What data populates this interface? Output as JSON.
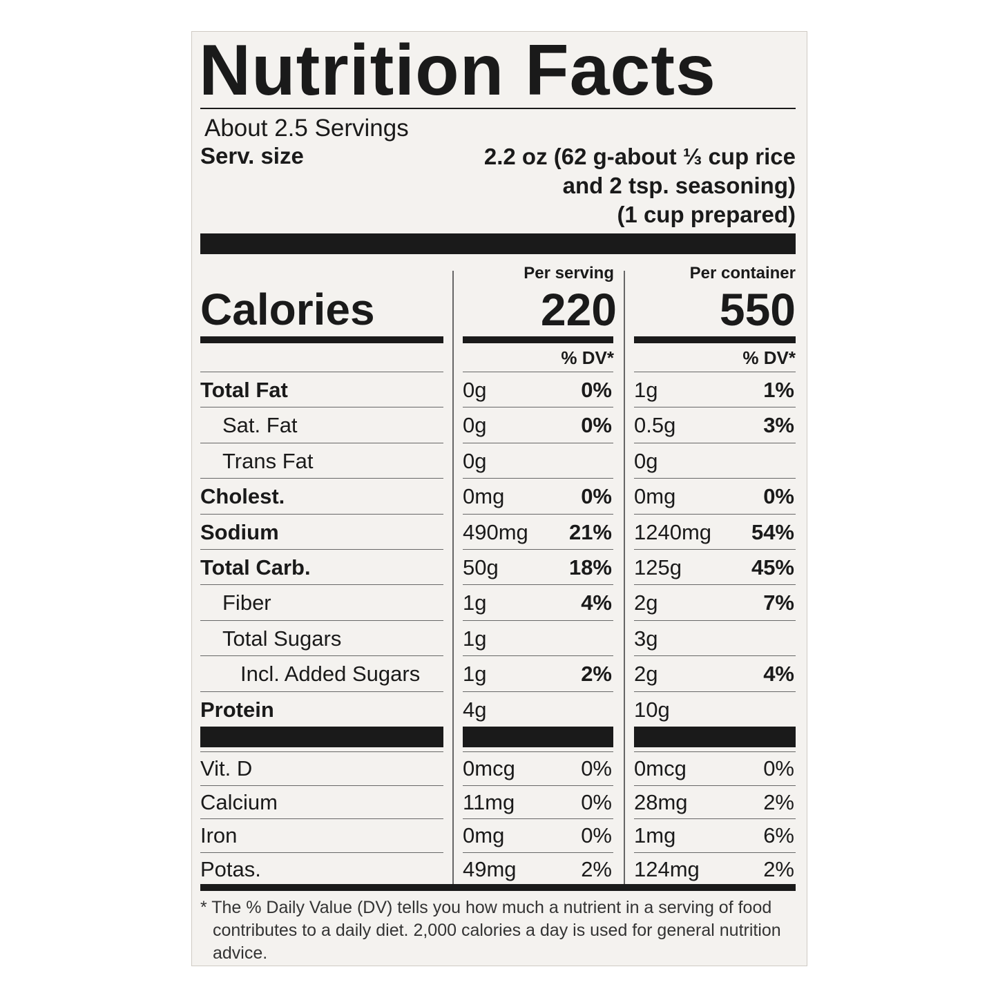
{
  "title": "Nutrition Facts",
  "servings": "About 2.5 Servings",
  "serving_size": {
    "label": "Serv. size",
    "lines": [
      "2.2 oz (62 g-about ⅓ cup rice",
      "and 2 tsp. seasoning)",
      "(1 cup prepared)"
    ]
  },
  "columns": [
    "Per serving",
    "Per container"
  ],
  "calories": {
    "label": "Calories",
    "per_serving": "220",
    "per_container": "550"
  },
  "dv_header": "% DV*",
  "nutrients": [
    {
      "label": "Total Fat",
      "per_serving": {
        "amount": "0g",
        "dv": "0%"
      },
      "per_container": {
        "amount": "1g",
        "dv": "1%"
      }
    },
    {
      "label": "Sat. Fat",
      "per_serving": {
        "amount": "0g",
        "dv": "0%"
      },
      "per_container": {
        "amount": "0.5g",
        "dv": "3%"
      }
    },
    {
      "label": "Trans Fat",
      "per_serving": {
        "amount": "0g",
        "dv": null
      },
      "per_container": {
        "amount": "0g",
        "dv": null
      }
    },
    {
      "label": "Cholest.",
      "per_serving": {
        "amount": "0mg",
        "dv": "0%"
      },
      "per_container": {
        "amount": "0mg",
        "dv": "0%"
      }
    },
    {
      "label": "Sodium",
      "per_serving": {
        "amount": "490mg",
        "dv": "21%"
      },
      "per_container": {
        "amount": "1240mg",
        "dv": "54%"
      }
    },
    {
      "label": "Total Carb.",
      "per_serving": {
        "amount": "50g",
        "dv": "18%"
      },
      "per_container": {
        "amount": "125g",
        "dv": "45%"
      }
    },
    {
      "label": "Fiber",
      "per_serving": {
        "amount": "1g",
        "dv": "4%"
      },
      "per_container": {
        "amount": "2g",
        "dv": "7%"
      }
    },
    {
      "label": "Total Sugars",
      "per_serving": {
        "amount": "1g",
        "dv": null
      },
      "per_container": {
        "amount": "3g",
        "dv": null
      }
    },
    {
      "label": "Incl. Added Sugars",
      "per_serving": {
        "amount": "1g",
        "dv": "2%"
      },
      "per_container": {
        "amount": "2g",
        "dv": "4%"
      }
    },
    {
      "label": "Protein",
      "per_serving": {
        "amount": "4g",
        "dv": null
      },
      "per_container": {
        "amount": "10g",
        "dv": null
      }
    }
  ],
  "vitamins": [
    {
      "label": "Vit. D",
      "per_serving": {
        "amount": "0mcg",
        "dv": "0%"
      },
      "per_container": {
        "amount": "0mcg",
        "dv": "0%"
      }
    },
    {
      "label": "Calcium",
      "per_serving": {
        "amount": "11mg",
        "dv": "0%"
      },
      "per_container": {
        "amount": "28mg",
        "dv": "2%"
      }
    },
    {
      "label": "Iron",
      "per_serving": {
        "amount": "0mg",
        "dv": "0%"
      },
      "per_container": {
        "amount": "1mg",
        "dv": "6%"
      }
    },
    {
      "label": "Potas.",
      "per_serving": {
        "amount": "49mg",
        "dv": "2%"
      },
      "per_container": {
        "amount": "124mg",
        "dv": "2%"
      }
    }
  ],
  "footnote": "* The % Daily Value (DV) tells you how much a nutrient in a serving of food contributes to a daily diet. 2,000 calories a day is used for general nutrition advice."
}
